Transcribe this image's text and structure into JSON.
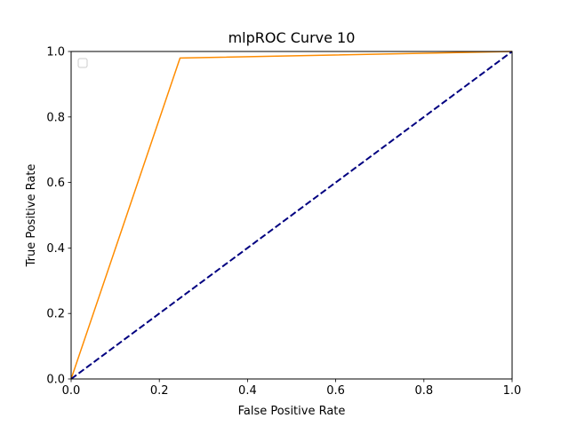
{
  "chart_data": {
    "type": "line",
    "title": "mlpROC Curve 10",
    "xlabel": "False Positive Rate",
    "ylabel": "True Positive Rate",
    "xlim": [
      0.0,
      1.0
    ],
    "ylim": [
      0.0,
      1.0
    ],
    "xticks": [
      "0.0",
      "0.2",
      "0.4",
      "0.6",
      "0.8",
      "1.0"
    ],
    "yticks": [
      "0.0",
      "0.2",
      "0.4",
      "0.6",
      "0.8",
      "1.0"
    ],
    "grid": false,
    "legend": {
      "placement": "top-left",
      "entries": []
    },
    "series": [
      {
        "color": "#ff8c00",
        "style": "solid",
        "x": [
          0.0,
          0.247,
          1.0
        ],
        "y": [
          0.0,
          0.98,
          1.0
        ]
      },
      {
        "color": "#000080",
        "style": "dashed",
        "x": [
          0.0,
          1.0
        ],
        "y": [
          0.0,
          1.0
        ]
      }
    ]
  }
}
